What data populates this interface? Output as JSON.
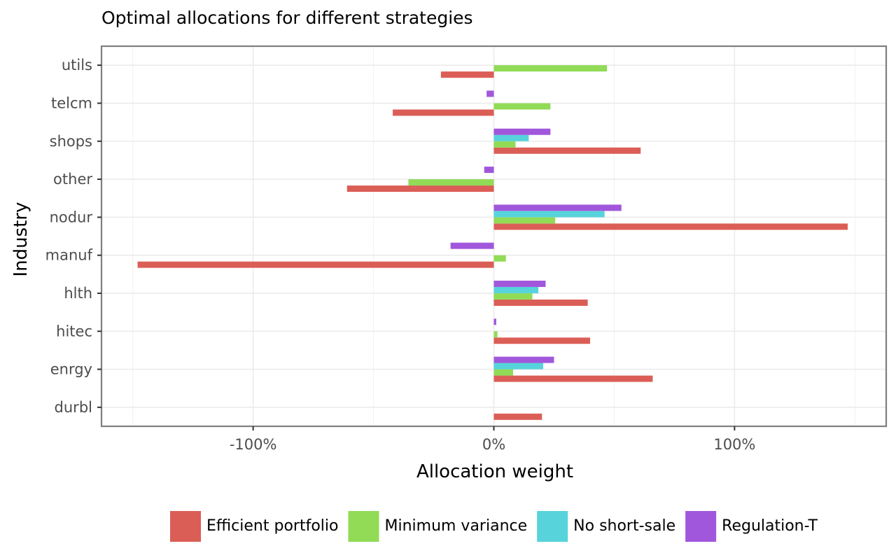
{
  "chart_data": {
    "type": "bar",
    "orientation": "horizontal",
    "title": "Optimal allocations for different strategies",
    "xlabel": "Allocation weight",
    "ylabel": "Industry",
    "categories": [
      "durbl",
      "enrgy",
      "hitec",
      "hlth ",
      "manuf",
      "nodur",
      "other",
      "shops",
      "telcm",
      "utils"
    ],
    "xlim": [
      -1.63,
      1.63
    ],
    "x_ticks": [
      -1,
      0,
      1
    ],
    "x_tick_labels": [
      "-100%",
      "0%",
      "100%"
    ],
    "grid": true,
    "legend_position": "bottom",
    "series": [
      {
        "name": "Efficient portfolio",
        "color": "#db5e56",
        "values": [
          0.2,
          0.66,
          0.4,
          0.39,
          -1.48,
          1.47,
          -0.61,
          0.61,
          -0.42,
          -0.22
        ]
      },
      {
        "name": "Minimum variance",
        "color": "#91db57",
        "values": [
          null,
          0.08,
          0.015,
          0.16,
          0.05,
          0.255,
          -0.355,
          0.09,
          0.235,
          0.47
        ]
      },
      {
        "name": "No short-sale",
        "color": "#57d3db",
        "values": [
          null,
          0.205,
          null,
          0.185,
          null,
          0.46,
          null,
          0.145,
          null,
          null
        ]
      },
      {
        "name": "Regulation-T",
        "color": "#a157db",
        "values": [
          null,
          0.25,
          0.01,
          0.215,
          -0.18,
          0.53,
          -0.04,
          0.235,
          -0.03,
          null
        ]
      }
    ]
  }
}
